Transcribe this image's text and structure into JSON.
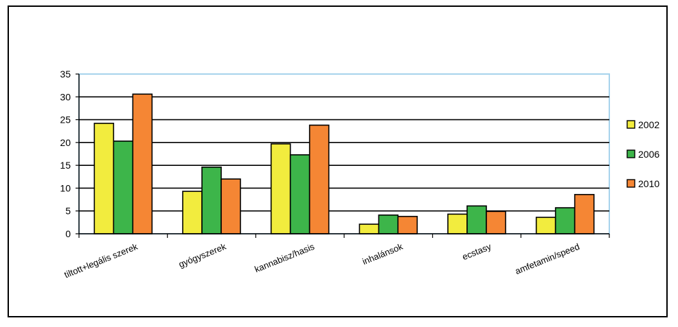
{
  "chart_data": {
    "type": "bar",
    "categories": [
      "tiltott+legális szerek",
      "gyógyszerek",
      "kannabisz/hasis",
      "inhalánsok",
      "ecstasy",
      "amfetamin/speed"
    ],
    "series": [
      {
        "name": "2002",
        "color": "#F2EC3E",
        "values": [
          24.2,
          9.3,
          19.7,
          2.1,
          4.3,
          3.6
        ]
      },
      {
        "name": "2006",
        "color": "#3DB54A",
        "values": [
          20.3,
          14.6,
          17.3,
          4.1,
          6.1,
          5.7
        ]
      },
      {
        "name": "2010",
        "color": "#F58634",
        "values": [
          30.6,
          12.0,
          23.8,
          3.8,
          4.9,
          8.6
        ]
      }
    ],
    "yticks": [
      "0",
      "5",
      "10",
      "15",
      "20",
      "25",
      "30",
      "35"
    ],
    "ylim": [
      0,
      35
    ],
    "grid": true,
    "legend": "right"
  }
}
